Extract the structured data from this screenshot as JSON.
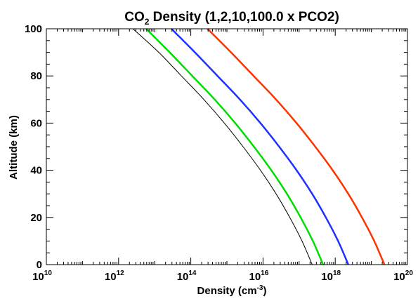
{
  "chart_data": {
    "type": "line",
    "title": {
      "prefix": "CO",
      "sub": "2",
      "suffix": " Density (1,2,10,100.0 x PCO2)"
    },
    "xlabel": {
      "prefix": "Density (cm",
      "sup": "-3",
      "suffix": ")"
    },
    "ylabel": "Altitude (km)",
    "x_scale": "log",
    "xlim": [
      10000000000.0,
      1e+20
    ],
    "ylim": [
      0,
      100
    ],
    "x_ticks": [
      {
        "base": "10",
        "exp": "10",
        "value": 10000000000.0
      },
      {
        "base": "10",
        "exp": "12",
        "value": 1000000000000.0
      },
      {
        "base": "10",
        "exp": "14",
        "value": 100000000000000.0
      },
      {
        "base": "10",
        "exp": "16",
        "value": 1e+16
      },
      {
        "base": "10",
        "exp": "18",
        "value": 1e+18
      },
      {
        "base": "10",
        "exp": "20",
        "value": 1e+20
      }
    ],
    "y_ticks": [
      "0",
      "20",
      "40",
      "60",
      "80",
      "100"
    ],
    "grid": false,
    "series": [
      {
        "color": "#000000",
        "width": 1,
        "points": [
          [
            2.3e+17,
            0
          ],
          [
            1.2e+17,
            10
          ],
          [
            5.5e+16,
            20
          ],
          [
            2.3e+16,
            30
          ],
          [
            8500000000000000.0,
            40
          ],
          [
            2800000000000000.0,
            50
          ],
          [
            850000000000000.0,
            60
          ],
          [
            230000000000000.0,
            70
          ],
          [
            55000000000000.0,
            80
          ],
          [
            13000000000000.0,
            90
          ],
          [
            2500000000000.0,
            100
          ]
        ]
      },
      {
        "color": "#00dd00",
        "width": 2.5,
        "points": [
          [
            4.6e+17,
            0
          ],
          [
            2.4e+17,
            10
          ],
          [
            1.1e+17,
            20
          ],
          [
            4.6e+16,
            30
          ],
          [
            1.7e+16,
            40
          ],
          [
            5600000000000000.0,
            50
          ],
          [
            1700000000000000.0,
            60
          ],
          [
            460000000000000.0,
            70
          ],
          [
            110000000000000.0,
            80
          ],
          [
            26000000000000.0,
            90
          ],
          [
            5800000000000.0,
            100
          ]
        ]
      },
      {
        "color": "#1e32ff",
        "width": 2.5,
        "points": [
          [
            2.3e+18,
            0
          ],
          [
            1.2e+18,
            10
          ],
          [
            5.5e+17,
            20
          ],
          [
            2.3e+17,
            30
          ],
          [
            8.5e+16,
            40
          ],
          [
            2.8e+16,
            50
          ],
          [
            8500000000000000.0,
            60
          ],
          [
            2300000000000000.0,
            70
          ],
          [
            550000000000000.0,
            80
          ],
          [
            130000000000000.0,
            90
          ],
          [
            29000000000000.0,
            100
          ]
        ]
      },
      {
        "color": "#ff3300",
        "width": 2.5,
        "points": [
          [
            2.3e+19,
            0
          ],
          [
            1.2e+19,
            10
          ],
          [
            5.5e+18,
            20
          ],
          [
            2.3e+18,
            30
          ],
          [
            8.5e+17,
            40
          ],
          [
            2.8e+17,
            50
          ],
          [
            8.5e+16,
            60
          ],
          [
            2.3e+16,
            70
          ],
          [
            5500000000000000.0,
            80
          ],
          [
            1300000000000000.0,
            90
          ],
          [
            290000000000000.0,
            100
          ]
        ]
      }
    ]
  }
}
